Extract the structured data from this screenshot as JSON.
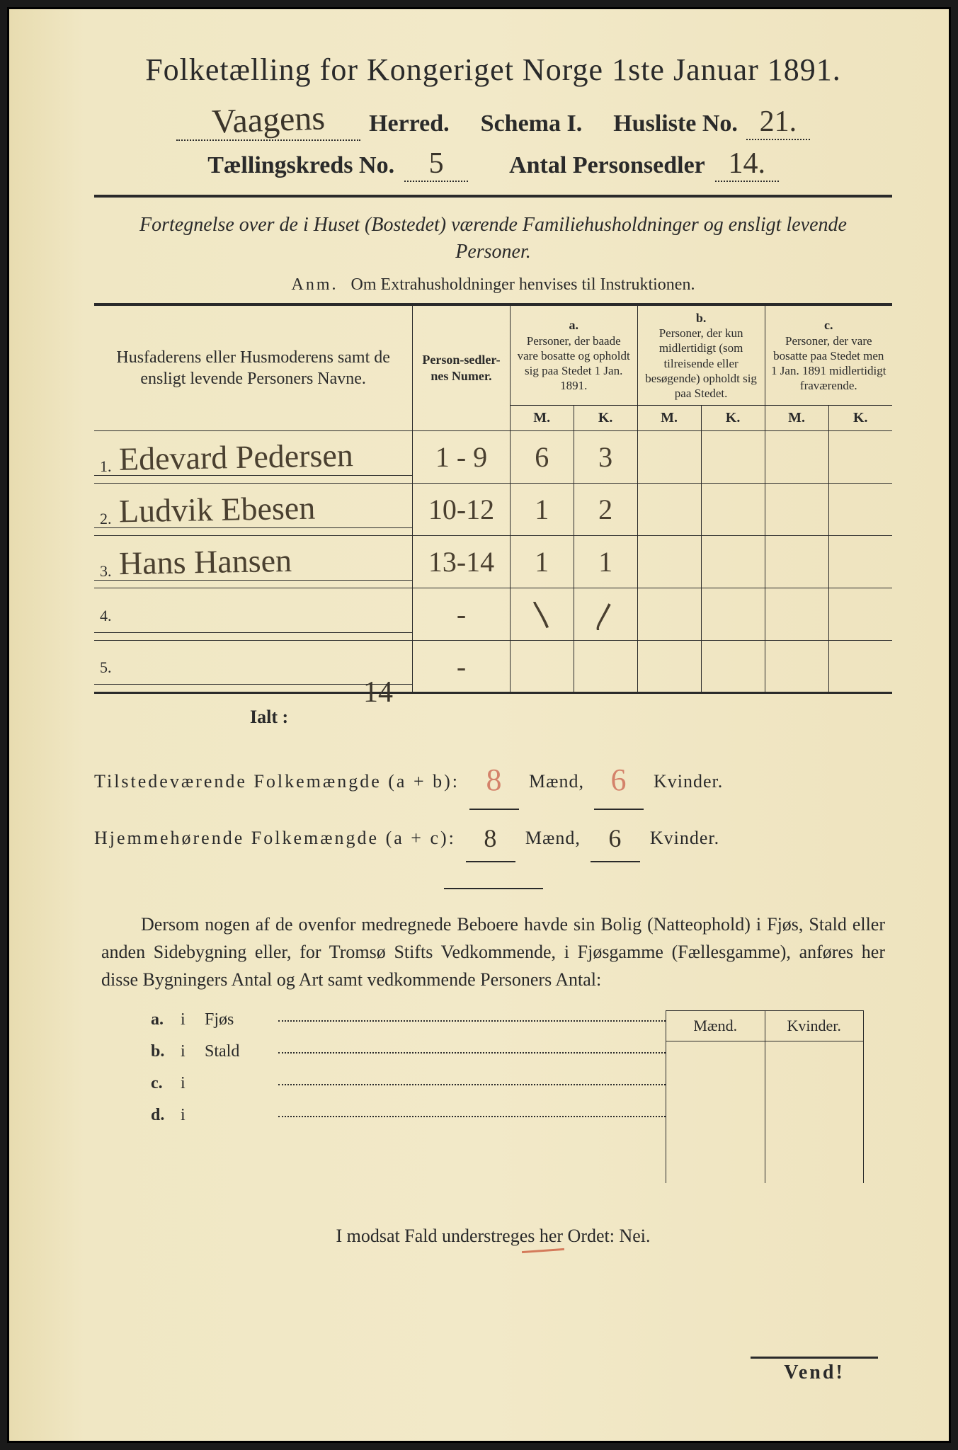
{
  "title": "Folketælling for Kongeriget Norge 1ste Januar 1891.",
  "header": {
    "herred_hw": "Vaagens",
    "herred_label": "Herred.",
    "schema_label": "Schema I.",
    "husliste_label": "Husliste No.",
    "husliste_hw": "21.",
    "kreds_label": "Tællingskreds No.",
    "kreds_hw": "5",
    "antal_label": "Antal Personsedler",
    "antal_hw": "14."
  },
  "subtitle": "Fortegnelse over de i Huset (Bostedet) værende Familiehusholdninger og ensligt levende Personer.",
  "anm_label": "Anm.",
  "anm_text": "Om Extrahusholdninger henvises til Instruktionen.",
  "columns": {
    "names": "Husfaderens eller Husmoderens samt de ensligt levende Personers Navne.",
    "numer": "Person-sedler-nes Numer.",
    "a_label": "a.",
    "a_text": "Personer, der baade vare bosatte og opholdt sig paa Stedet 1 Jan. 1891.",
    "b_label": "b.",
    "b_text": "Personer, der kun midlertidigt (som tilreisende eller besøgende) opholdt sig paa Stedet.",
    "c_label": "c.",
    "c_text": "Personer, der vare bosatte paa Stedet men 1 Jan. 1891 midlertidigt fraværende.",
    "m": "M.",
    "k": "K."
  },
  "rows": [
    {
      "n": "1.",
      "name": "Edevard Pedersen",
      "numer": "1 - 9",
      "a_m": "6",
      "a_k": "3",
      "b_m": "",
      "b_k": "",
      "c_m": "",
      "c_k": ""
    },
    {
      "n": "2.",
      "name": "Ludvik Ebesen",
      "numer": "10-12",
      "a_m": "1",
      "a_k": "2",
      "b_m": "",
      "b_k": "",
      "c_m": "",
      "c_k": ""
    },
    {
      "n": "3.",
      "name": "Hans Hansen",
      "numer": "13-14",
      "a_m": "1",
      "a_k": "1",
      "b_m": "",
      "b_k": "",
      "c_m": "",
      "c_k": ""
    },
    {
      "n": "4.",
      "name": "",
      "numer": "-",
      "a_m": "〵",
      "a_k": "〳",
      "b_m": "",
      "b_k": "",
      "c_m": "",
      "c_k": ""
    },
    {
      "n": "5.",
      "name": "",
      "numer": "-",
      "a_m": "",
      "a_k": "",
      "b_m": "",
      "b_k": "",
      "c_m": "",
      "c_k": ""
    }
  ],
  "ialt_label": "Ialt :",
  "ialt_value": "14",
  "summary": {
    "line1_label": "Tilstedeværende Folkemængde (a + b):",
    "line1_m": "8",
    "line1_k": "6",
    "line2_label": "Hjemmehørende Folkemængde (a + c):",
    "line2_m": "8",
    "line2_k": "6",
    "maend": "Mænd,",
    "kvinder": "Kvinder."
  },
  "paragraph": "Dersom nogen af de ovenfor medregnede Beboere havde sin Bolig (Natteophold) i Fjøs, Stald eller anden Sidebygning eller, for Tromsø Stifts Vedkommende, i Fjøsgamme (Fællesgamme), anføres her disse Bygningers Antal og Art samt vedkommende Personers Antal:",
  "side_headers": {
    "m": "Mænd.",
    "k": "Kvinder."
  },
  "items": [
    {
      "key": "a.",
      "i": "i",
      "label": "Fjøs"
    },
    {
      "key": "b.",
      "i": "i",
      "label": "Stald"
    },
    {
      "key": "c.",
      "i": "i",
      "label": ""
    },
    {
      "key": "d.",
      "i": "i",
      "label": ""
    }
  ],
  "nei_line": "I modsat Fald understreges her Ordet: Nei.",
  "vend": "Vend!",
  "colors": {
    "paper": "#f0e7c4",
    "ink": "#2a2a2a",
    "handwriting": "#4a4030",
    "red_pencil": "#d4826a"
  }
}
